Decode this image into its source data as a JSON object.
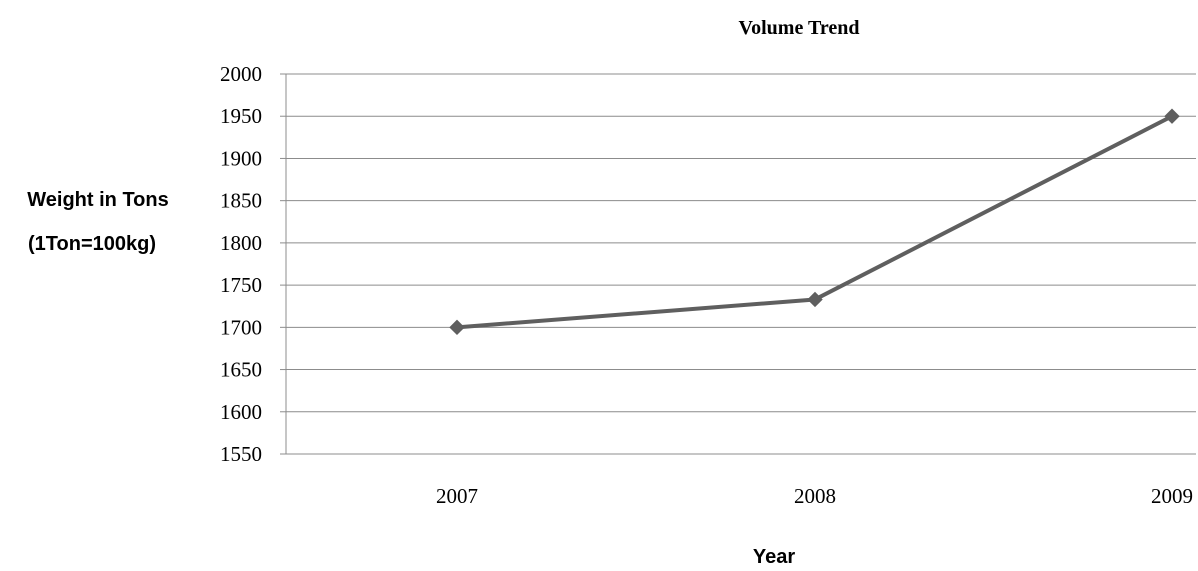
{
  "chart_data": {
    "type": "line",
    "title": "Volume Trend",
    "xlabel": "Year",
    "ylabel": [
      "Weight in Tons",
      "(1Ton=100kg)"
    ],
    "categories": [
      "2007",
      "2008",
      "2009"
    ],
    "series": [
      {
        "values": [
          1700,
          1733,
          1950
        ]
      }
    ],
    "ylim": [
      1550,
      2000
    ],
    "yticks": [
      1550,
      1600,
      1650,
      1700,
      1750,
      1800,
      1850,
      1900,
      1950,
      2000
    ],
    "grid": true,
    "legend": "none",
    "colors": {
      "series": "#5f5f5f",
      "grid": "#8c8c8c"
    },
    "marker": "diamond"
  }
}
